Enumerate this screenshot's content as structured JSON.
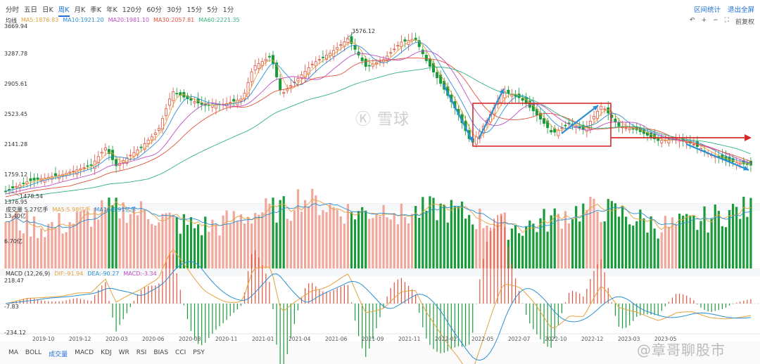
{
  "tabs": [
    "分时",
    "五日",
    "日K",
    "周K",
    "月K",
    "季K",
    "年K",
    "120分",
    "60分",
    "30分",
    "15分",
    "5分",
    "1分"
  ],
  "active_tab": "周K",
  "top_right": {
    "range_stats": "区间统计",
    "exit_fullscreen": "退出全屏"
  },
  "main_legend": {
    "label": "均线",
    "ma5": "MA5:1876.83",
    "ma10": "MA10:1921.20",
    "ma20": "MA20:1981.10",
    "ma30": "MA30:2057.81",
    "ma60": "MA60:2221.35"
  },
  "tools": {
    "undo": "↶",
    "zoom_in": "+",
    "zoom_out": "−",
    "fullscreen": "⛶",
    "adjust": "前复权"
  },
  "price_axis": [
    "3669.94",
    "3287.78",
    "2905.61",
    "2523.45",
    "2141.28",
    "1759.12",
    "1376.95"
  ],
  "price_annotations": {
    "high": "3576.12",
    "low": "1478.54"
  },
  "volume_legend": {
    "label": "成交量 5.27亿手",
    "ma5": "MA5:5.98亿手",
    "ma10": "MA10:6.91亿手"
  },
  "volume_axis": [
    "13.40亿",
    "6.70亿"
  ],
  "macd_legend": {
    "label": "MACD (12,26,9)",
    "dif": "DIF:-91.94",
    "dea": "DEA:-90.27",
    "macd": "MACD:-3.34"
  },
  "macd_axis": [
    "218.47",
    "-7.83",
    "-234.12"
  ],
  "x_axis": [
    "2019-10",
    "2019-12",
    "2020-03",
    "2020-06",
    "2020-08",
    "2020-11",
    "2021-01",
    "2021-04",
    "2021-06",
    "2021-09",
    "2021-11",
    "2022-02",
    "2022-05",
    "2022-07",
    "2022-10",
    "2022-12",
    "2023-03",
    "2023-05"
  ],
  "bottom_tabs": [
    "MA",
    "BOLL",
    "成交量",
    "MACD",
    "KDJ",
    "WR",
    "RSI",
    "BIAS",
    "CCI",
    "PSY"
  ],
  "active_bottom_tab": "成交量",
  "watermark": "雪球",
  "signature": "@章哥聊股市",
  "colors": {
    "up": "#e0533d",
    "down": "#1a9b3a",
    "ma5": "#e6a23c",
    "ma10": "#2a8fd6",
    "ma20": "#c04dc4",
    "ma30": "#e0533d",
    "ma60": "#35b37e",
    "accent": "#1d6fd6"
  }
}
